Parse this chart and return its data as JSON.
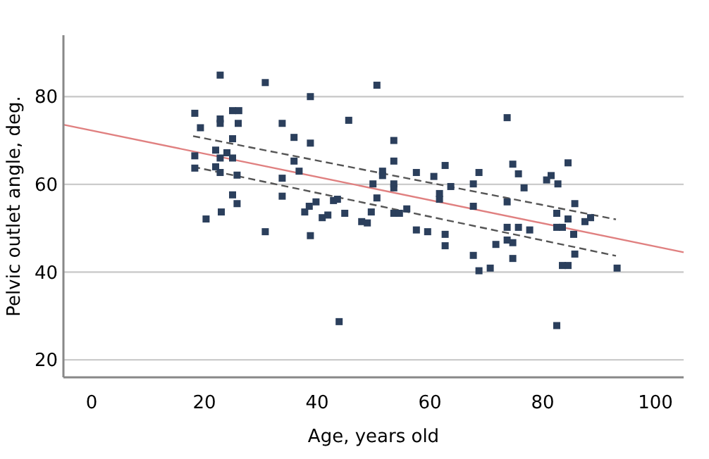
{
  "chart_data": {
    "type": "scatter",
    "xlabel": "Age, years old",
    "ylabel": "Pelvic outlet angle, deg.",
    "xlim": [
      -5,
      105
    ],
    "ylim": [
      16,
      94
    ],
    "xticks": [
      0,
      20,
      40,
      60,
      80,
      100
    ],
    "yticks": [
      20,
      40,
      60,
      80
    ],
    "grid": "y",
    "series": [
      {
        "marker": "square",
        "color": "#2b3f5c",
        "x": [
          22.8,
          30.8,
          38.8,
          18.3,
          19.3,
          22.8,
          22.8,
          25,
          26.1,
          26,
          33.8,
          25,
          35.9,
          38.8,
          45.6,
          18.3,
          18.3,
          22,
          24,
          22.8,
          25,
          22,
          22.8,
          25.8,
          35.9,
          36.8,
          33.8,
          33.8,
          25,
          25.8,
          23,
          20.3,
          37.8,
          38.6,
          39.8,
          40.9,
          41.9,
          42.9,
          43.6,
          44.9,
          30.8,
          38.8,
          43.9,
          50.6,
          73.7,
          53.6,
          53.6,
          51.6,
          51.6,
          57.6,
          60.7,
          62.7,
          68.7,
          67.7,
          63.7,
          53.6,
          53.6,
          49.9,
          50.6,
          61.7,
          61.7,
          74.7,
          75.7,
          76.7,
          80.7,
          81.5,
          82.7,
          84.5,
          85.7,
          67.7,
          73.7,
          49.6,
          53.6,
          54.6,
          55.9,
          82.5,
          84.5,
          88.5,
          87.5,
          47.9,
          48.9,
          57.6,
          59.6,
          62.7,
          62.7,
          67.7,
          68.7,
          70.7,
          71.7,
          73.7,
          74.7,
          74.7,
          73.7,
          75.7,
          77.7,
          82.5,
          83.5,
          85.5,
          85.7,
          83.5,
          84.5,
          93.2,
          82.5
        ],
        "values": [
          84.9,
          83.2,
          80,
          76.2,
          72.9,
          74.9,
          73.9,
          76.8,
          76.8,
          73.9,
          73.9,
          70.4,
          70.7,
          69.4,
          74.6,
          66.5,
          63.7,
          67.8,
          67.2,
          66,
          66,
          64,
          62.7,
          62.1,
          65.3,
          63,
          61.4,
          57.3,
          57.6,
          55.6,
          53.7,
          52.1,
          53.7,
          55,
          56,
          52.4,
          53,
          56.3,
          56.6,
          53.4,
          49.2,
          48.3,
          28.7,
          82.6,
          75.2,
          70,
          65.3,
          63,
          62,
          62.7,
          61.8,
          64.3,
          62.7,
          60.1,
          59.5,
          60.1,
          59.2,
          60.1,
          56.9,
          57.9,
          56.6,
          64.6,
          62.4,
          59.2,
          61,
          62,
          60.1,
          64.9,
          55.6,
          55,
          56,
          53.7,
          53.4,
          53.4,
          54.4,
          53.4,
          52.1,
          52.4,
          51.5,
          51.5,
          51.2,
          49.6,
          49.2,
          48.6,
          46,
          43.8,
          40.3,
          40.9,
          46.3,
          47.3,
          46.7,
          43.1,
          50.2,
          50.2,
          49.6,
          50.2,
          50.2,
          48.6,
          44.1,
          41.5,
          41.5,
          40.9,
          27.8
        ]
      },
      {
        "type": "line",
        "color": "#e08080",
        "line_style": "solid",
        "x": [
          -5,
          105
        ],
        "values": [
          73.6,
          44.5
        ]
      },
      {
        "type": "line",
        "color": "#555555",
        "line_style": "dashed",
        "x": [
          18,
          93
        ],
        "values": [
          71,
          52
        ]
      },
      {
        "type": "line",
        "color": "#555555",
        "line_style": "dashed",
        "x": [
          18,
          93
        ],
        "values": [
          64,
          43.7
        ]
      }
    ]
  }
}
